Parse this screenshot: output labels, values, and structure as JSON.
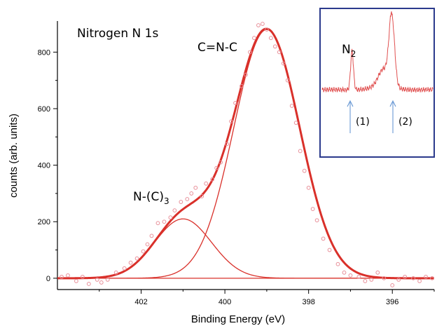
{
  "chart_data": [
    {
      "type": "scatter",
      "title": "Nitrogen N 1s",
      "xlabel": "Binding Energy (eV)",
      "ylabel": "counts (arb. units)",
      "xlim": [
        404.0,
        395.0
      ],
      "ylim": [
        -40,
        910
      ],
      "x_reversed": true,
      "grid": false,
      "x_ticks": [
        402,
        400,
        398,
        396
      ],
      "x_tick_labels": [
        "402",
        "400",
        "398",
        "396"
      ],
      "y_ticks": [
        0,
        200,
        400,
        600,
        800
      ],
      "y_tick_labels": [
        "0",
        "200",
        "400",
        "600",
        "800"
      ],
      "annotations": [
        {
          "text": "C=N-C"
        },
        {
          "text": "N-(C)",
          "subscript": "3"
        }
      ],
      "colors": {
        "data": "#e8909a",
        "fit": "#d9302a",
        "axis": "#000000"
      },
      "series": [
        {
          "kind": "points",
          "x": [
            403.9,
            403.75,
            403.55,
            403.4,
            403.25,
            403.05,
            402.95,
            402.8,
            402.6,
            402.4,
            402.25,
            402.1,
            401.95,
            401.85,
            401.75,
            401.6,
            401.45,
            401.3,
            401.2,
            401.05,
            400.9,
            400.8,
            400.7,
            400.55,
            400.45,
            400.3,
            400.2,
            400.1,
            399.95,
            399.85,
            399.75,
            399.6,
            399.5,
            399.4,
            399.3,
            399.2,
            399.1,
            399.0,
            398.9,
            398.8,
            398.7,
            398.6,
            398.5,
            398.4,
            398.3,
            398.2,
            398.1,
            398.0,
            397.9,
            397.8,
            397.65,
            397.5,
            397.3,
            397.15,
            397.0,
            396.8,
            396.65,
            396.5,
            396.35,
            396.2,
            396.0,
            395.85,
            395.7,
            395.5,
            395.35,
            395.2,
            395.05
          ],
          "y": [
            5,
            10,
            -10,
            5,
            -20,
            -5,
            -15,
            -5,
            20,
            35,
            55,
            70,
            95,
            120,
            150,
            195,
            200,
            215,
            240,
            270,
            280,
            300,
            320,
            290,
            335,
            350,
            390,
            410,
            475,
            555,
            620,
            680,
            720,
            800,
            850,
            895,
            900,
            880,
            850,
            820,
            800,
            760,
            700,
            610,
            550,
            450,
            380,
            320,
            245,
            205,
            140,
            100,
            50,
            20,
            10,
            5,
            -10,
            -5,
            20,
            0,
            -25,
            -5,
            5,
            0,
            -10,
            5,
            0
          ]
        },
        {
          "name": "C=N-C",
          "kind": "gaussian",
          "center": 399.0,
          "height": 880,
          "fwhm": 1.85
        },
        {
          "name": "N-(C)3",
          "kind": "gaussian",
          "center": 401.0,
          "height": 210,
          "fwhm": 1.6
        },
        {
          "name": "envelope",
          "kind": "sum"
        }
      ]
    },
    {
      "type": "line",
      "x_reversed": true,
      "annotations": [
        {
          "text": "N",
          "subscript": "2"
        },
        {
          "text": "(1)"
        },
        {
          "text": "(2)"
        }
      ],
      "colors": {
        "line": "#e05050",
        "arrow": "#5b8fd0",
        "border": "#2b3a8c"
      },
      "series": [
        {
          "kind": "spectrum",
          "peaks": [
            {
              "label": "(1)",
              "relative_height": 0.55,
              "width": "narrow"
            },
            {
              "label": "(2)",
              "relative_height": 1.0,
              "width": "broad",
              "shoulder": true
            }
          ]
        }
      ]
    }
  ]
}
